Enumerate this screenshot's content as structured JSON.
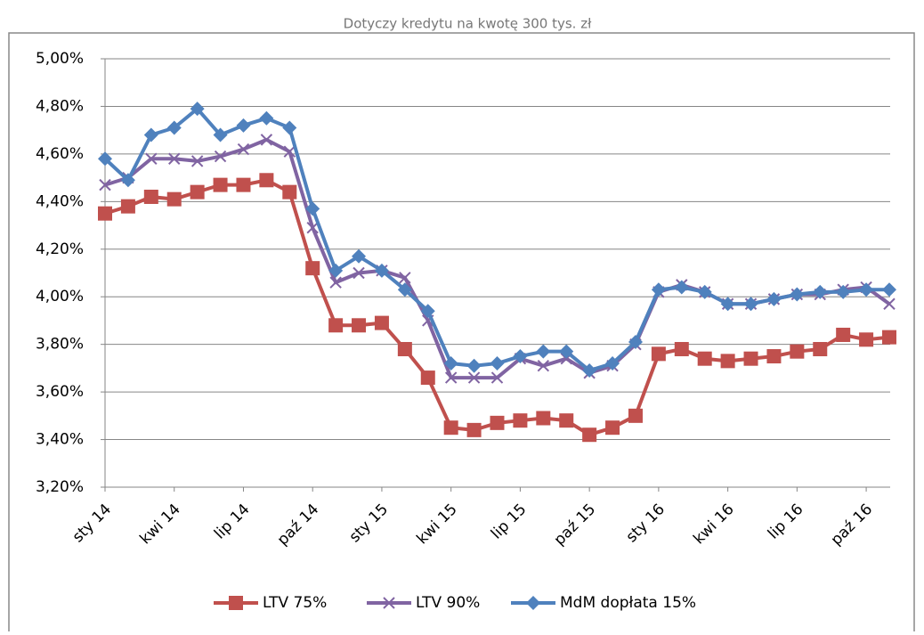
{
  "chart_data": {
    "type": "line",
    "title": "Dotyczy kredytu na kwotę 300 tys. zł",
    "categories": [
      "sty 14",
      null,
      null,
      "kwi 14",
      null,
      null,
      "lip 14",
      null,
      null,
      "paź 14",
      null,
      null,
      "sty 15",
      null,
      null,
      "kwi 15",
      null,
      null,
      "lip 15",
      null,
      null,
      "paź 15",
      null,
      null,
      "sty 16",
      null,
      null,
      "kwi 16",
      null,
      null,
      "lip 16",
      null,
      null,
      "paź 16",
      null
    ],
    "series": [
      {
        "name": "LTV 75%",
        "color": "#c0504d",
        "marker": "square",
        "values": [
          4.35,
          4.38,
          4.42,
          4.41,
          4.44,
          4.47,
          4.47,
          4.49,
          4.44,
          4.12,
          3.88,
          3.88,
          3.89,
          3.78,
          3.66,
          3.45,
          3.44,
          3.47,
          3.48,
          3.49,
          3.48,
          3.42,
          3.45,
          3.5,
          3.76,
          3.78,
          3.74,
          3.73,
          3.74,
          3.75,
          3.77,
          3.78,
          3.84,
          3.82,
          3.83
        ]
      },
      {
        "name": "LTV 90%",
        "color": "#8064a2",
        "marker": "x",
        "values": [
          4.47,
          4.5,
          4.58,
          4.58,
          4.57,
          4.59,
          4.62,
          4.66,
          4.61,
          4.29,
          4.06,
          4.1,
          4.11,
          4.08,
          3.9,
          3.66,
          3.66,
          3.66,
          3.74,
          3.71,
          3.74,
          3.68,
          3.71,
          3.8,
          4.02,
          4.05,
          4.02,
          3.97,
          3.97,
          3.99,
          4.01,
          4.01,
          4.03,
          4.04,
          3.97
        ]
      },
      {
        "name": "MdM dopłata 15%",
        "color": "#4f81bd",
        "marker": "diamond",
        "values": [
          4.58,
          4.49,
          4.68,
          4.71,
          4.79,
          4.68,
          4.72,
          4.75,
          4.71,
          4.37,
          4.11,
          4.17,
          4.11,
          4.03,
          3.94,
          3.72,
          3.71,
          3.72,
          3.75,
          3.77,
          3.77,
          3.69,
          3.72,
          3.81,
          4.03,
          4.04,
          4.02,
          3.97,
          3.97,
          3.99,
          4.01,
          4.02,
          4.02,
          4.03,
          4.03
        ]
      }
    ],
    "ylim": [
      3.2,
      5.0
    ],
    "yticks": [
      {
        "value": 3.2,
        "label": "3,20%"
      },
      {
        "value": 3.4,
        "label": "3,40%"
      },
      {
        "value": 3.6,
        "label": "3,60%"
      },
      {
        "value": 3.8,
        "label": "3,80%"
      },
      {
        "value": 4.0,
        "label": "4,00%"
      },
      {
        "value": 4.2,
        "label": "4,20%"
      },
      {
        "value": 4.4,
        "label": "4,40%"
      },
      {
        "value": 4.6,
        "label": "4,60%"
      },
      {
        "value": 4.8,
        "label": "4,80%"
      },
      {
        "value": 5.0,
        "label": "5,00%"
      }
    ],
    "grid": true,
    "legend": "bottom"
  }
}
